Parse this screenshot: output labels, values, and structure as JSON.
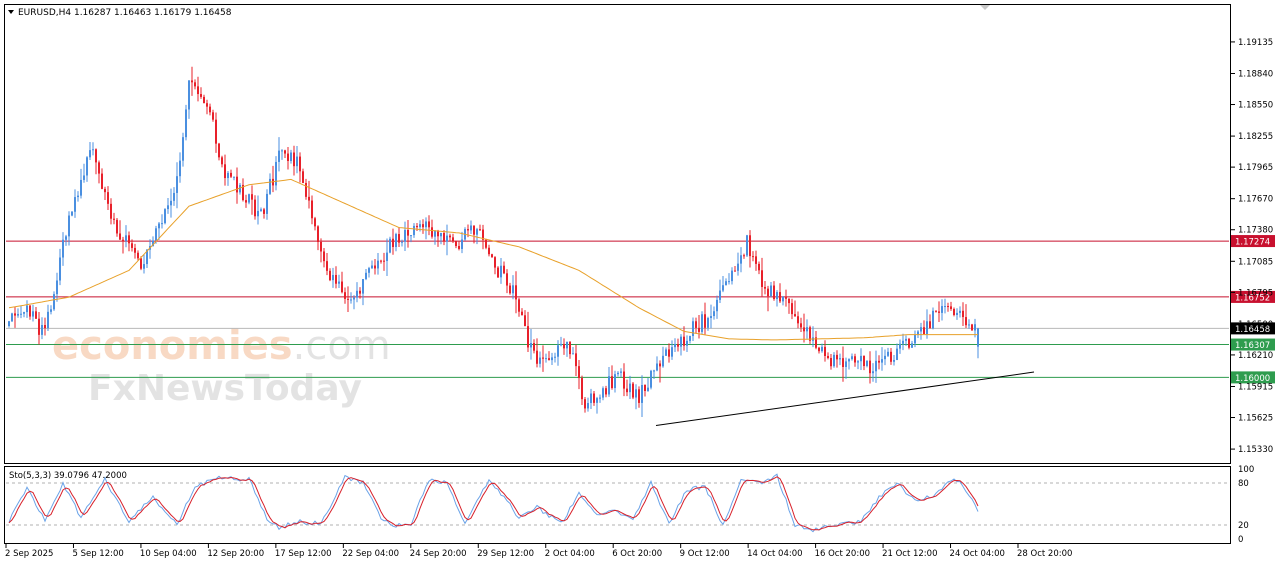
{
  "symbol_header": {
    "text": "EURUSD,H4  1.16287 1.16463 1.16179 1.16458"
  },
  "watermark": {
    "brand_1": "economies",
    "brand_1_suffix": ".com",
    "brand_2": "FxNewsToday"
  },
  "colors": {
    "bull": "#4a8fe0",
    "bear": "#e8202a",
    "ma": "#e8a12a",
    "resistance": "#c8102e",
    "support": "#2e9c4e",
    "current": "#000000",
    "grid": "#dcdcdc",
    "stoch_main": "#6aa3e8",
    "stoch_signal": "#d8202a"
  },
  "chart_data": [
    {
      "type": "candlestick",
      "symbol": "EURUSD",
      "timeframe": "H4",
      "ohlc_last": {
        "open": 1.16287,
        "high": 1.16463,
        "low": 1.16179,
        "close": 1.16458
      },
      "ylim": [
        1.152,
        1.1948
      ],
      "y_ticks": [
        "1.19135",
        "1.18840",
        "1.18550",
        "1.18255",
        "1.17965",
        "1.17670",
        "1.17380",
        "1.17085",
        "1.16795",
        "1.16500",
        "1.16210",
        "1.15915",
        "1.15625",
        "1.15330"
      ],
      "x_ticks": [
        "2 Sep 2025",
        "5 Sep 12:00",
        "10 Sep 04:00",
        "12 Sep 20:00",
        "17 Sep 12:00",
        "22 Sep 04:00",
        "24 Sep 20:00",
        "29 Sep 12:00",
        "2 Oct 04:00",
        "6 Oct 20:00",
        "9 Oct 12:00",
        "14 Oct 04:00",
        "16 Oct 20:00",
        "21 Oct 12:00",
        "24 Oct 04:00",
        "28 Oct 20:00"
      ],
      "price_anchors": [
        [
          0,
          1.1648
        ],
        [
          6,
          1.1672
        ],
        [
          10,
          1.164
        ],
        [
          14,
          1.1668
        ],
        [
          20,
          1.175
        ],
        [
          28,
          1.182
        ],
        [
          34,
          1.1745
        ],
        [
          40,
          1.1725
        ],
        [
          44,
          1.1698
        ],
        [
          50,
          1.174
        ],
        [
          56,
          1.1785
        ],
        [
          60,
          1.187
        ],
        [
          66,
          1.186
        ],
        [
          72,
          1.179
        ],
        [
          78,
          1.177
        ],
        [
          84,
          1.175
        ],
        [
          90,
          1.1805
        ],
        [
          96,
          1.1805
        ],
        [
          102,
          1.174
        ],
        [
          108,
          1.169
        ],
        [
          114,
          1.167
        ],
        [
          120,
          1.17
        ],
        [
          126,
          1.172
        ],
        [
          132,
          1.1735
        ],
        [
          138,
          1.1745
        ],
        [
          144,
          1.173
        ],
        [
          150,
          1.1728
        ],
        [
          156,
          1.174
        ],
        [
          162,
          1.1705
        ],
        [
          168,
          1.168
        ],
        [
          174,
          1.1625
        ],
        [
          180,
          1.161
        ],
        [
          186,
          1.1635
        ],
        [
          192,
          1.1575
        ],
        [
          198,
          1.159
        ],
        [
          204,
          1.16
        ],
        [
          210,
          1.158
        ],
        [
          216,
          1.1612
        ],
        [
          222,
          1.1625
        ],
        [
          228,
          1.1648
        ],
        [
          234,
          1.1655
        ],
        [
          240,
          1.1695
        ],
        [
          246,
          1.1725
        ],
        [
          252,
          1.1682
        ],
        [
          258,
          1.1675
        ],
        [
          264,
          1.165
        ],
        [
          270,
          1.1625
        ],
        [
          276,
          1.1615
        ],
        [
          282,
          1.162
        ],
        [
          288,
          1.1605
        ],
        [
          294,
          1.162
        ],
        [
          300,
          1.1635
        ],
        [
          306,
          1.165
        ],
        [
          312,
          1.1665
        ],
        [
          318,
          1.1655
        ],
        [
          323,
          1.1646
        ]
      ],
      "moving_average_anchors": [
        [
          0,
          1.1665
        ],
        [
          20,
          1.1675
        ],
        [
          40,
          1.17
        ],
        [
          60,
          1.176
        ],
        [
          80,
          1.178
        ],
        [
          94,
          1.1785
        ],
        [
          110,
          1.1765
        ],
        [
          130,
          1.174
        ],
        [
          150,
          1.1735
        ],
        [
          170,
          1.1722
        ],
        [
          190,
          1.17
        ],
        [
          210,
          1.1665
        ],
        [
          225,
          1.1643
        ],
        [
          240,
          1.1636
        ],
        [
          255,
          1.1635
        ],
        [
          270,
          1.1636
        ],
        [
          285,
          1.1637
        ],
        [
          300,
          1.164
        ],
        [
          323,
          1.164
        ]
      ],
      "trendline": {
        "from": [
          216,
          1.1555
        ],
        "to": [
          342,
          1.1605
        ]
      },
      "horizontal_levels": [
        {
          "price": 1.17274,
          "label": "1.17274",
          "role": "resistance"
        },
        {
          "price": 1.16752,
          "label": "1.16752",
          "role": "resistance"
        },
        {
          "price": 1.16458,
          "label": "1.16458",
          "role": "current"
        },
        {
          "price": 1.16307,
          "label": "1.16307",
          "role": "support"
        },
        {
          "price": 1.16,
          "label": "1.16000",
          "role": "support"
        }
      ]
    },
    {
      "type": "line",
      "indicator": "Stochastic",
      "header": "Sto(5,3,3) 39.0796 47.2000",
      "main": 39.0796,
      "signal": 47.2,
      "ylim": [
        0,
        100
      ],
      "y_ticks": [
        "100",
        "80",
        "20",
        "0"
      ],
      "levels": [
        20,
        80
      ],
      "main_anchors": [
        [
          0,
          25
        ],
        [
          6,
          75
        ],
        [
          12,
          25
        ],
        [
          18,
          80
        ],
        [
          24,
          30
        ],
        [
          32,
          85
        ],
        [
          40,
          25
        ],
        [
          48,
          60
        ],
        [
          56,
          20
        ],
        [
          62,
          75
        ],
        [
          70,
          88
        ],
        [
          80,
          85
        ],
        [
          86,
          30
        ],
        [
          90,
          15
        ],
        [
          96,
          25
        ],
        [
          104,
          22
        ],
        [
          112,
          88
        ],
        [
          118,
          80
        ],
        [
          124,
          30
        ],
        [
          128,
          18
        ],
        [
          134,
          22
        ],
        [
          140,
          85
        ],
        [
          146,
          80
        ],
        [
          152,
          20
        ],
        [
          160,
          85
        ],
        [
          166,
          55
        ],
        [
          170,
          30
        ],
        [
          176,
          45
        ],
        [
          184,
          22
        ],
        [
          190,
          65
        ],
        [
          196,
          35
        ],
        [
          202,
          40
        ],
        [
          208,
          28
        ],
        [
          214,
          80
        ],
        [
          220,
          22
        ],
        [
          226,
          70
        ],
        [
          232,
          75
        ],
        [
          238,
          20
        ],
        [
          244,
          85
        ],
        [
          250,
          80
        ],
        [
          256,
          90
        ],
        [
          262,
          20
        ],
        [
          268,
          12
        ],
        [
          276,
          20
        ],
        [
          284,
          25
        ],
        [
          290,
          60
        ],
        [
          296,
          80
        ],
        [
          302,
          55
        ],
        [
          308,
          62
        ],
        [
          314,
          85
        ],
        [
          318,
          78
        ],
        [
          321,
          55
        ],
        [
          323,
          39
        ]
      ]
    }
  ]
}
